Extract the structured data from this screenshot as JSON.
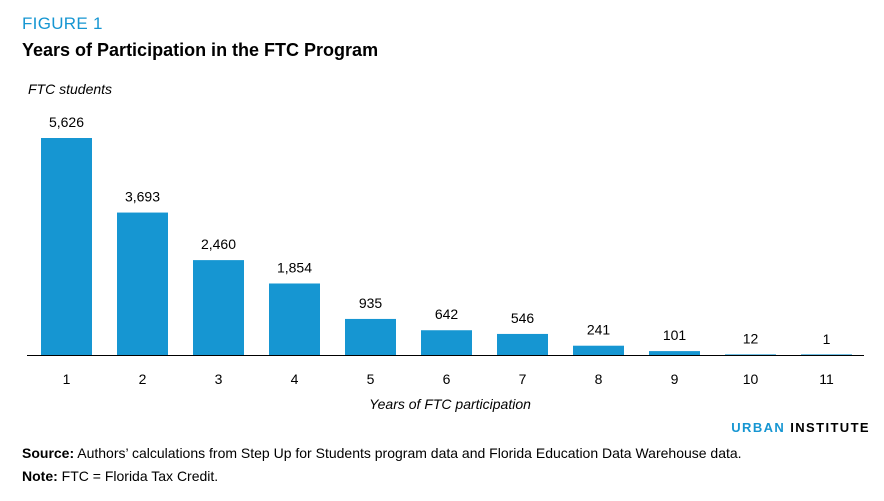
{
  "figure_label": "FIGURE 1",
  "chart_data": {
    "type": "bar",
    "title": "Years of Participation in the FTC Program",
    "ylabel": "FTC students",
    "xlabel": "Years of FTC participation",
    "categories": [
      "1",
      "2",
      "3",
      "4",
      "5",
      "6",
      "7",
      "8",
      "9",
      "10",
      "11"
    ],
    "values": [
      5626,
      3693,
      2460,
      1854,
      935,
      642,
      546,
      241,
      101,
      12,
      1
    ],
    "value_labels": [
      "5,626",
      "3,693",
      "2,460",
      "1,854",
      "935",
      "642",
      "546",
      "241",
      "101",
      "12",
      "1"
    ],
    "ylim": [
      0,
      5626
    ],
    "grid": false,
    "bar_color": "#1696d2"
  },
  "branding": {
    "part1": "URBAN",
    "part2": "INSTITUTE"
  },
  "source": {
    "label": "Source:",
    "text": "Authors’ calculations from Step Up for Students program data and Florida Education Data Warehouse data."
  },
  "note": {
    "label": "Note:",
    "text": "FTC = Florida Tax Credit."
  }
}
